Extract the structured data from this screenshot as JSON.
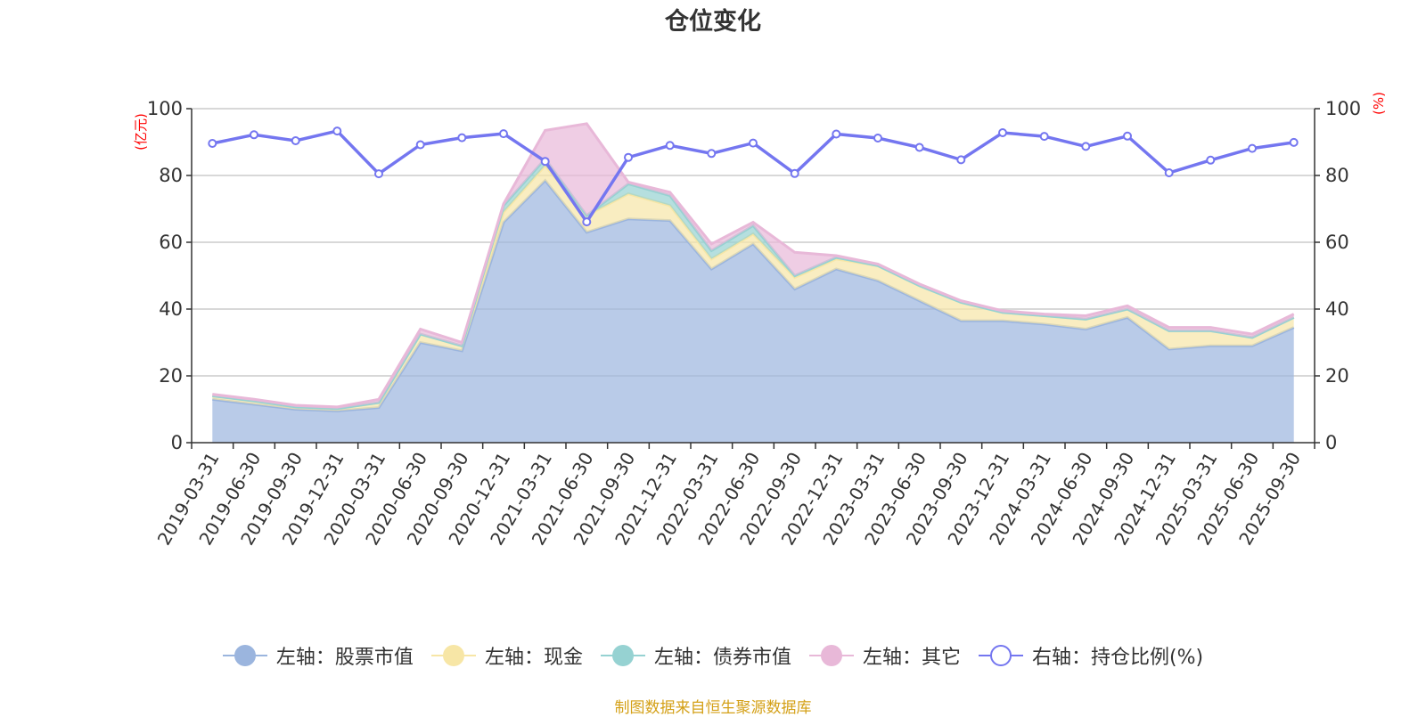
{
  "chart_data": {
    "type": "area",
    "title": "仓位变化",
    "left_axis_unit": "(亿元)",
    "right_axis_unit": "(%)",
    "ylim_left": [
      0,
      100
    ],
    "ylim_right": [
      0,
      100
    ],
    "yticks": [
      0,
      20,
      40,
      60,
      80,
      100
    ],
    "x": [
      "2019-03-31",
      "2019-06-30",
      "2019-09-30",
      "2019-12-31",
      "2020-03-31",
      "2020-06-30",
      "2020-09-30",
      "2020-12-31",
      "2021-03-31",
      "2021-06-30",
      "2021-09-30",
      "2021-12-31",
      "2022-03-31",
      "2022-06-30",
      "2022-09-30",
      "2022-12-31",
      "2023-03-31",
      "2023-06-30",
      "2023-09-30",
      "2023-12-31",
      "2024-03-31",
      "2024-06-30",
      "2024-09-30",
      "2024-12-31",
      "2025-03-31",
      "2025-06-30",
      "2025-09-30"
    ],
    "series": [
      {
        "name": "左轴：股票市值",
        "axis": "left",
        "stack": true,
        "color": "#9bb5de",
        "values": [
          13,
          11.5,
          10,
          9.5,
          10.5,
          30,
          27.5,
          66,
          78.5,
          63,
          67,
          66.5,
          52,
          59.5,
          46,
          52,
          48.5,
          42.5,
          36.5,
          36.5,
          35.5,
          34,
          37.5,
          28,
          29,
          29,
          34.5
        ]
      },
      {
        "name": "左轴：现金",
        "axis": "left",
        "stack": true,
        "color": "#f7e6a6",
        "values": [
          1,
          1,
          0.7,
          0.7,
          1.5,
          2.5,
          1.5,
          3,
          4.5,
          5,
          7.5,
          4.5,
          3,
          3,
          3.5,
          3,
          4.5,
          4.5,
          5.5,
          2.5,
          2.5,
          3,
          2.5,
          5.5,
          4.5,
          2.5,
          3
        ]
      },
      {
        "name": "左轴：债券市值",
        "axis": "left",
        "stack": true,
        "color": "#96d2d2",
        "values": [
          0,
          0,
          0,
          0,
          0,
          0,
          0,
          2,
          2,
          0,
          3,
          3,
          2.5,
          2.5,
          0.5,
          0.5,
          0,
          0,
          0,
          0,
          0,
          0,
          0,
          0,
          0,
          0,
          0
        ]
      },
      {
        "name": "左轴：其它",
        "axis": "left",
        "stack": true,
        "color": "#e8b8d8",
        "values": [
          0.5,
          0.5,
          0.5,
          0.5,
          1,
          1.5,
          1,
          0.5,
          8.5,
          27.5,
          0.5,
          1,
          2,
          1,
          7,
          0.5,
          0.5,
          0.5,
          0.5,
          0.5,
          0.5,
          1,
          1,
          1,
          1,
          1,
          1
        ]
      },
      {
        "name": "右轴：持仓比例(%)",
        "axis": "right",
        "stack": false,
        "color": "#7476f0",
        "values": [
          89.6,
          92.2,
          90.4,
          93.3,
          80.5,
          89.2,
          91.3,
          92.5,
          84.2,
          66.1,
          85.4,
          89,
          86.6,
          89.7,
          80.6,
          92.4,
          91.2,
          88.4,
          84.7,
          92.8,
          91.7,
          88.7,
          91.8,
          80.8,
          84.6,
          88.1,
          89.9
        ]
      }
    ]
  },
  "legend": {
    "items": [
      {
        "label": "左轴：股票市值",
        "color": "#9bb5de",
        "hollow": false
      },
      {
        "label": "左轴：现金",
        "color": "#f7e6a6",
        "hollow": false
      },
      {
        "label": "左轴：债券市值",
        "color": "#96d2d2",
        "hollow": false
      },
      {
        "label": "左轴：其它",
        "color": "#e8b8d8",
        "hollow": false
      },
      {
        "label": "右轴：持仓比例(%)",
        "color": "#7476f0",
        "hollow": true
      }
    ]
  },
  "footer": {
    "source": "制图数据来自恒生聚源数据库"
  }
}
